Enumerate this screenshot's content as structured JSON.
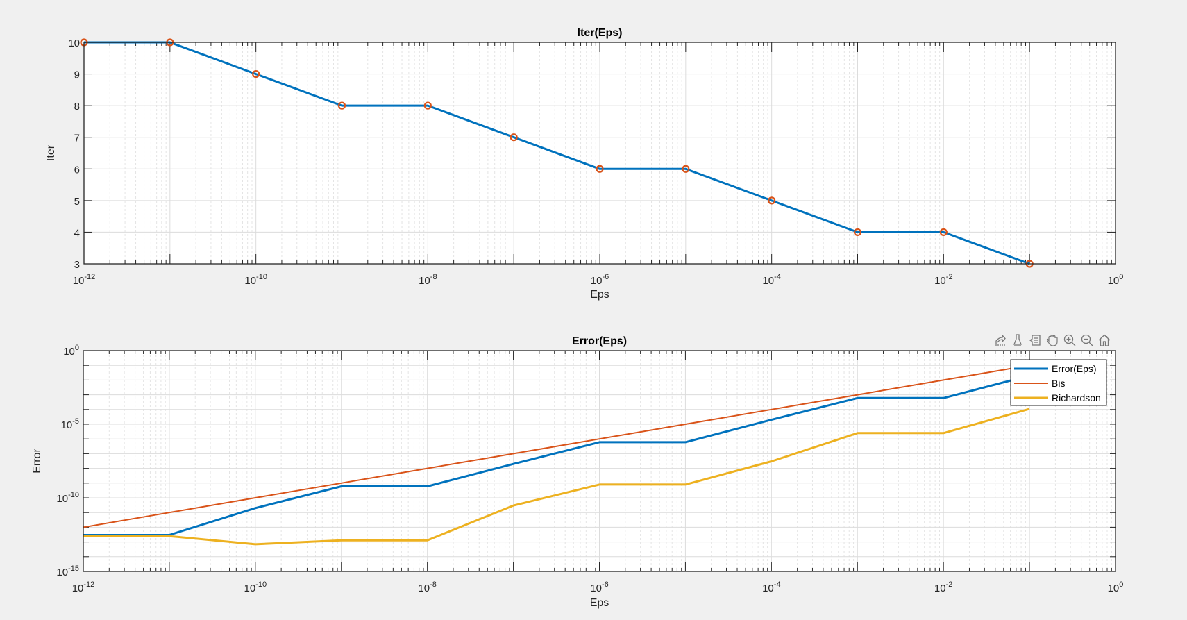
{
  "figure": {
    "background": "#f0f0f0",
    "axes_background": "#ffffff",
    "grid_major_color": "#dcdcdc",
    "grid_minor_color": "#e4e4e4",
    "axis_color": "#262626"
  },
  "toolbar": {
    "buttons": [
      {
        "name": "export-icon",
        "label": "Export"
      },
      {
        "name": "brush-icon",
        "label": "Brush"
      },
      {
        "name": "datatip-icon",
        "label": "Data Tips"
      },
      {
        "name": "pan-icon",
        "label": "Pan"
      },
      {
        "name": "zoom-in-icon",
        "label": "Zoom In"
      },
      {
        "name": "zoom-out-icon",
        "label": "Zoom Out"
      },
      {
        "name": "home-icon",
        "label": "Restore View"
      }
    ]
  },
  "chart_data": [
    {
      "type": "line",
      "title": "Iter(Eps)",
      "xlabel": "Eps",
      "ylabel": "Iter",
      "xscale": "log",
      "yscale": "linear",
      "xlim": [
        1e-12,
        1
      ],
      "ylim": [
        3,
        10
      ],
      "grid": true,
      "minor_grid": true,
      "x_ticks": [
        "10^-12",
        "10^-10",
        "10^-8",
        "10^-6",
        "10^-4",
        "10^-2",
        "10^0"
      ],
      "y_ticks": [
        "3",
        "4",
        "5",
        "6",
        "7",
        "8",
        "9",
        "10"
      ],
      "x": [
        1e-12,
        1e-11,
        1e-10,
        1e-09,
        1e-08,
        1e-07,
        1e-06,
        1e-05,
        0.0001,
        0.001,
        0.01,
        0.1
      ],
      "series": [
        {
          "name": "Iter",
          "color": "#0072bd",
          "marker": "o",
          "marker_color": "#d95319",
          "values": [
            10,
            10,
            9,
            8,
            8,
            7,
            6,
            6,
            5,
            4,
            4,
            3
          ]
        }
      ]
    },
    {
      "type": "line",
      "title": "Error(Eps)",
      "xlabel": "Eps",
      "ylabel": "Error",
      "xscale": "log",
      "yscale": "log",
      "xlim": [
        1e-12,
        1
      ],
      "ylim": [
        1e-15,
        1
      ],
      "grid": true,
      "minor_grid": true,
      "legend_position": "northeast",
      "x_ticks": [
        "10^-12",
        "10^-10",
        "10^-8",
        "10^-6",
        "10^-4",
        "10^-2",
        "10^0"
      ],
      "y_ticks": [
        "10^-15",
        "10^-10",
        "10^-5",
        "10^0"
      ],
      "x": [
        1e-12,
        1e-11,
        1e-10,
        1e-09,
        1e-08,
        1e-07,
        1e-06,
        1e-05,
        0.0001,
        0.001,
        0.01,
        0.1
      ],
      "series": [
        {
          "name": "Error(Eps)",
          "color": "#0072bd",
          "width": 3,
          "values": [
            3e-13,
            3e-13,
            2e-11,
            6e-10,
            6e-10,
            2e-08,
            6e-07,
            6e-07,
            2e-05,
            0.0006,
            0.0006,
            0.02
          ]
        },
        {
          "name": "Bis",
          "color": "#d95319",
          "width": 2,
          "values": [
            1e-12,
            1e-11,
            1e-10,
            1e-09,
            1e-08,
            1e-07,
            1e-06,
            1e-05,
            0.0001,
            0.001,
            0.01,
            0.1
          ]
        },
        {
          "name": "Richardson",
          "color": "#edb120",
          "width": 3,
          "values": [
            2.5e-13,
            2.5e-13,
            7e-14,
            1.3e-13,
            1.3e-13,
            3e-11,
            8e-10,
            8e-10,
            3e-08,
            2.5e-06,
            2.5e-06,
            0.00011
          ]
        }
      ]
    }
  ]
}
